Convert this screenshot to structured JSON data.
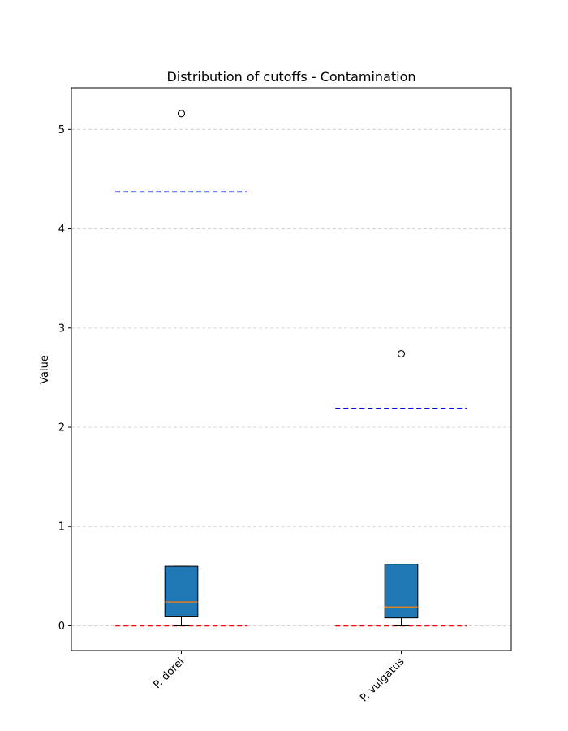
{
  "chart_data": {
    "type": "box",
    "title": "Distribution of cutoffs - Contamination",
    "xlabel": "",
    "ylabel": "Value",
    "ylim": [
      -0.25,
      5.42
    ],
    "yticks": [
      0,
      1,
      2,
      3,
      4,
      5
    ],
    "grid": "y-dashed",
    "categories": [
      "P. dorei",
      "P. vulgatus"
    ],
    "boxes": [
      {
        "category": "P. dorei",
        "whisker_low": 0.0,
        "q1": 0.09,
        "median": 0.24,
        "q3": 0.6,
        "whisker_high": 0.6,
        "outliers": [
          5.16
        ]
      },
      {
        "category": "P. vulgatus",
        "whisker_low": 0.0,
        "q1": 0.08,
        "median": 0.19,
        "q3": 0.62,
        "whisker_high": 0.62,
        "outliers": [
          2.74
        ]
      }
    ],
    "reference_lines": [
      {
        "category": "P. dorei",
        "value": 4.37,
        "color": "#0000ff"
      },
      {
        "category": "P. dorei",
        "value": 0.0,
        "color": "#ff0000"
      },
      {
        "category": "P. vulgatus",
        "value": 2.19,
        "color": "#0000ff"
      },
      {
        "category": "P. vulgatus",
        "value": 0.0,
        "color": "#ff0000"
      }
    ],
    "colors": {
      "box_fill": "#1f77b4",
      "median": "#ff7f0e",
      "grid": "#cccccc"
    }
  }
}
